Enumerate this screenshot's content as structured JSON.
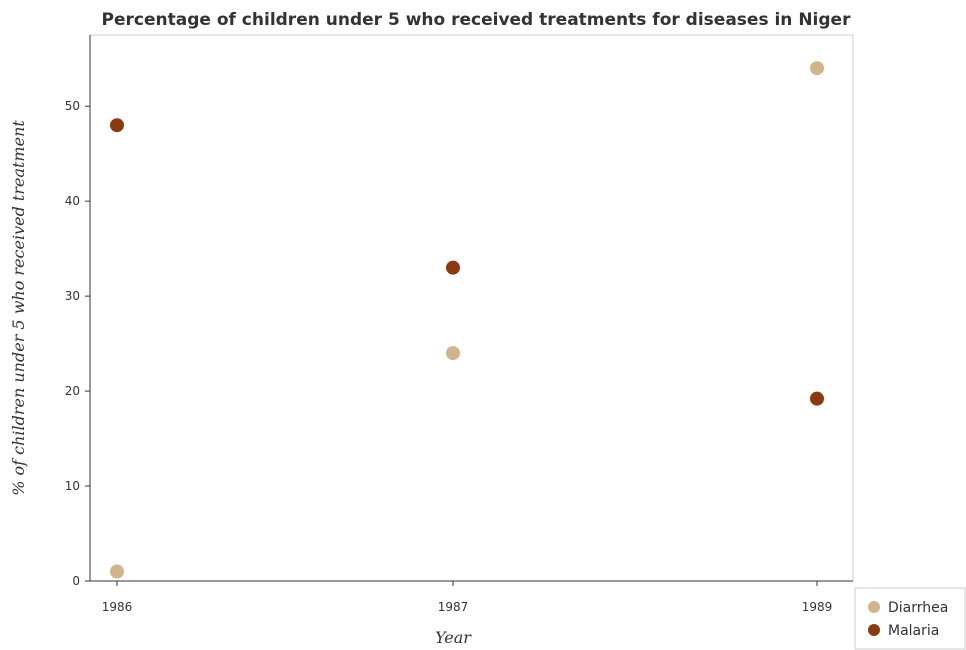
{
  "colors": {
    "diarrhea": "#d2b48c",
    "malaria": "#8b3a0f",
    "axis": "#333333",
    "frame": "#cccccc"
  },
  "chart_data": {
    "type": "scatter",
    "title": "Percentage of children under 5 who received treatments for diseases in Niger",
    "xlabel": "Year",
    "ylabel": "% of children under 5 who received treatment",
    "categories": [
      "1986",
      "1987",
      "1989"
    ],
    "yticks": [
      "0",
      "10",
      "20",
      "30",
      "40",
      "50"
    ],
    "ylim": [
      0,
      57.5
    ],
    "grid": false,
    "legend_position": "bottom-right",
    "series": [
      {
        "name": "Diarrhea",
        "color": "#d2b48c",
        "values": [
          1,
          24,
          54
        ]
      },
      {
        "name": "Malaria",
        "color": "#8b3a0f",
        "values": [
          48,
          33,
          19.2
        ]
      }
    ]
  }
}
